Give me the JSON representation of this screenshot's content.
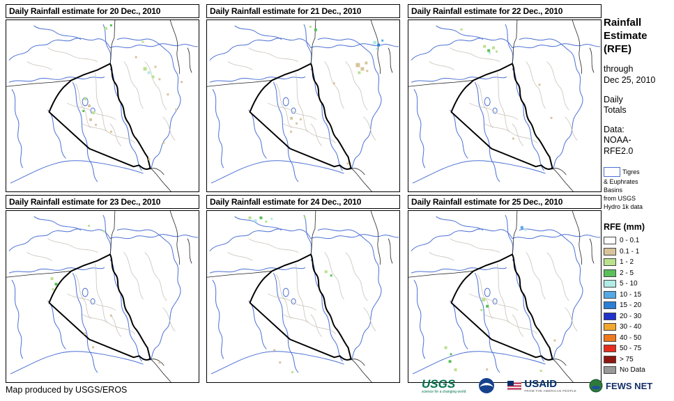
{
  "panels": [
    {
      "title": "Daily Rainfall estimate for 20 Dec., 2010",
      "speckles": [
        [
          142,
          10,
          4,
          "lgreen"
        ],
        [
          150,
          6,
          3,
          "green"
        ],
        [
          196,
          30,
          3,
          "lgreen"
        ],
        [
          186,
          52,
          3,
          "tan"
        ],
        [
          198,
          68,
          5,
          "lgreen"
        ],
        [
          204,
          74,
          4,
          "cyan"
        ],
        [
          210,
          80,
          4,
          "lgreen"
        ],
        [
          214,
          66,
          3,
          "tan"
        ],
        [
          220,
          84,
          3,
          "tan"
        ],
        [
          232,
          106,
          3,
          "tan"
        ],
        [
          244,
          128,
          3,
          "tan"
        ],
        [
          252,
          88,
          3,
          "tan"
        ],
        [
          112,
          112,
          4,
          "lgreen"
        ],
        [
          118,
          122,
          4,
          "tan"
        ],
        [
          124,
          132,
          4,
          "lgreen"
        ],
        [
          120,
          142,
          4,
          "tan"
        ],
        [
          128,
          150,
          3,
          "tan"
        ],
        [
          110,
          130,
          3,
          "green"
        ],
        [
          150,
          160,
          3,
          "tan"
        ],
        [
          205,
          200,
          3,
          "tan"
        ],
        [
          226,
          176,
          3,
          "tan"
        ]
      ]
    },
    {
      "title": "Daily Rainfall estimate for 21 Dec., 2010",
      "speckles": [
        [
          155,
          12,
          4,
          "green"
        ],
        [
          148,
          8,
          3,
          "lgreen"
        ],
        [
          240,
          30,
          5,
          "cyan"
        ],
        [
          246,
          34,
          4,
          "blue"
        ],
        [
          252,
          28,
          3,
          "lblue"
        ],
        [
          244,
          40,
          3,
          "cyan"
        ],
        [
          215,
          62,
          6,
          "tan"
        ],
        [
          222,
          68,
          5,
          "tan"
        ],
        [
          228,
          60,
          4,
          "tan"
        ],
        [
          218,
          74,
          4,
          "lgreen"
        ],
        [
          230,
          72,
          3,
          "tan"
        ],
        [
          182,
          90,
          3,
          "tan"
        ],
        [
          120,
          140,
          4,
          "tan"
        ],
        [
          128,
          148,
          3,
          "tan"
        ],
        [
          134,
          142,
          3,
          "tan"
        ],
        [
          202,
          206,
          3,
          "tan"
        ],
        [
          120,
          160,
          3,
          "tan"
        ]
      ]
    },
    {
      "title": "Daily Rainfall estimate for 22 Dec., 2010",
      "speckles": [
        [
          108,
          36,
          4,
          "lgreen"
        ],
        [
          114,
          42,
          4,
          "green"
        ],
        [
          121,
          38,
          4,
          "lgreen"
        ],
        [
          116,
          46,
          3,
          "cyan"
        ],
        [
          126,
          44,
          3,
          "lgreen"
        ],
        [
          75,
          12,
          3,
          "lgreen"
        ],
        [
          188,
          92,
          3,
          "tan"
        ],
        [
          205,
          140,
          3,
          "tan"
        ],
        [
          150,
          170,
          3,
          "tan"
        ]
      ]
    },
    {
      "title": "Daily Rainfall estimate for 23 Dec., 2010",
      "speckles": [
        [
          118,
          20,
          3,
          "lgreen"
        ],
        [
          140,
          28,
          3,
          "lgreen"
        ],
        [
          64,
          96,
          4,
          "lgreen"
        ],
        [
          70,
          104,
          4,
          "green"
        ],
        [
          66,
          112,
          3,
          "lgreen"
        ],
        [
          112,
          176,
          3,
          "tan"
        ],
        [
          124,
          196,
          3,
          "tan"
        ],
        [
          220,
          218,
          3,
          "tan"
        ],
        [
          150,
          150,
          3,
          "tan"
        ]
      ]
    },
    {
      "title": "Daily Rainfall estimate for 24 Dec., 2010",
      "speckles": [
        [
          60,
          8,
          4,
          "lgreen"
        ],
        [
          68,
          12,
          4,
          "cyan"
        ],
        [
          76,
          8,
          4,
          "green"
        ],
        [
          84,
          14,
          3,
          "lgreen"
        ],
        [
          92,
          10,
          3,
          "cyan"
        ],
        [
          140,
          8,
          3,
          "lgreen"
        ],
        [
          170,
          86,
          4,
          "lgreen"
        ],
        [
          178,
          92,
          3,
          "green"
        ],
        [
          104,
          218,
          3,
          "tan"
        ],
        [
          122,
          232,
          3,
          "lgreen"
        ],
        [
          96,
          200,
          3,
          "tan"
        ]
      ]
    },
    {
      "title": "Daily Rainfall estimate for 25 Dec., 2010",
      "speckles": [
        [
          162,
          22,
          4,
          "lblue"
        ],
        [
          168,
          26,
          3,
          "cyan"
        ],
        [
          106,
          126,
          5,
          "lgreen"
        ],
        [
          112,
          136,
          4,
          "green"
        ],
        [
          104,
          142,
          3,
          "lgreen"
        ],
        [
          52,
          196,
          4,
          "lgreen"
        ],
        [
          58,
          216,
          4,
          "green"
        ],
        [
          66,
          228,
          4,
          "lgreen"
        ],
        [
          60,
          206,
          3,
          "green"
        ],
        [
          112,
          228,
          3,
          "tan"
        ],
        [
          210,
          186,
          3,
          "tan"
        ],
        [
          190,
          230,
          3,
          "lgreen"
        ]
      ]
    }
  ],
  "speckle_colors": {
    "tan": "#d8c49c",
    "lgreen": "#b9e18e",
    "green": "#59c05a",
    "cyan": "#b0ebe6",
    "lblue": "#55a8e4",
    "blue": "#2b7fd6",
    "dblue": "#2033cc"
  },
  "map_colors": {
    "basin_outline": "#4a6fd4",
    "country_border": "#222222",
    "iraq_border": "#000000",
    "admin_border": "#c9c2b8"
  },
  "sidebar": {
    "title": "Rainfall\nEstimate\n(RFE)",
    "through": "through\nDec 25, 2010",
    "totals": "Daily\nTotals",
    "data_source": "Data:\nNOAA-\nRFE2.0",
    "basin_first_line": "Tigres",
    "basin_rest": "& Euphrates\nBasins\nfrom USGS\nHydro 1k data",
    "rfe_header": "RFE (mm)",
    "legend": [
      {
        "label": "0 - 0.1",
        "color": "#ffffff"
      },
      {
        "label": "0.1 - 1",
        "color": "#d8c49c"
      },
      {
        "label": "1 - 2",
        "color": "#b9e18e"
      },
      {
        "label": "2 - 5",
        "color": "#59c05a"
      },
      {
        "label": "5 - 10",
        "color": "#b0ebe6"
      },
      {
        "label": "10 - 15",
        "color": "#55a8e4"
      },
      {
        "label": "15 - 20",
        "color": "#2b7fd6"
      },
      {
        "label": "20 - 30",
        "color": "#2033cc"
      },
      {
        "label": "30 - 40",
        "color": "#f2a72e"
      },
      {
        "label": "40 - 50",
        "color": "#ef7a1d"
      },
      {
        "label": "50 - 75",
        "color": "#e62e1e"
      },
      {
        "label": "> 75",
        "color": "#8f1711"
      },
      {
        "label": "No Data",
        "color": "#999999"
      }
    ]
  },
  "footer": {
    "credit": "Map produced by USGS/EROS",
    "logos": {
      "usgs": "USGS",
      "usgs_tagline": "science for a changing world",
      "usaid": "USAID",
      "usaid_tagline": "FROM THE AMERICAN PEOPLE",
      "fewsnet": "FEWS NET"
    }
  }
}
